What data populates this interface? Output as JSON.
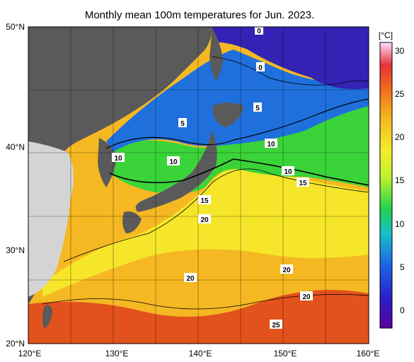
{
  "title": "Monthly mean 100m temperatures for Jun. 2023.",
  "lat_labels": [
    "50°N",
    "40°N",
    "30°N",
    "20°N"
  ],
  "lon_labels": [
    "120°E",
    "130°E",
    "140°E",
    "150°E",
    "160°E"
  ],
  "colorbar": {
    "unit": "[°C]",
    "ticks": [
      "30",
      "25",
      "20",
      "15",
      "10",
      "5",
      "0"
    ],
    "range": [
      -2,
      31
    ]
  },
  "contour_labels": [
    "0",
    "0",
    "5",
    "5",
    "10",
    "10",
    "10",
    "10",
    "15",
    "15",
    "20",
    "20",
    "20",
    "20",
    "25"
  ],
  "colors": {
    "land": "#5a5a5a",
    "land_light": "#d0d0d0",
    "cold": "#2d1fb0",
    "cool": "#1f6fe0",
    "green": "#2fd02f",
    "yellow": "#f2ea2a",
    "orange": "#f5a21a",
    "red": "#e03a14"
  }
}
